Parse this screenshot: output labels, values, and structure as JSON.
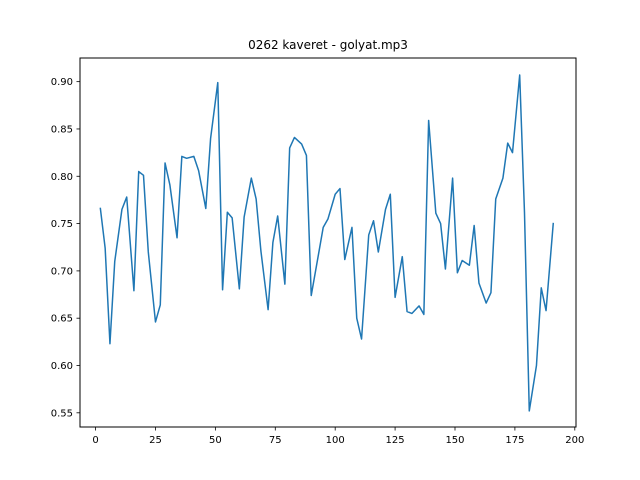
{
  "chart_data": {
    "type": "line",
    "title": "0262 kaveret - golyat.mp3",
    "xlabel": "",
    "ylabel": "",
    "xlim": [
      -6.5,
      200.5
    ],
    "ylim": [
      0.535,
      0.925
    ],
    "grid": false,
    "x_ticks": [
      0,
      25,
      50,
      75,
      100,
      125,
      150,
      175,
      200
    ],
    "x_tick_labels": [
      "0",
      "25",
      "50",
      "75",
      "100",
      "125",
      "150",
      "175",
      "200"
    ],
    "y_ticks": [
      0.55,
      0.6,
      0.65,
      0.7,
      0.75,
      0.8,
      0.85,
      0.9
    ],
    "y_tick_labels": [
      "0.55",
      "0.60",
      "0.65",
      "0.70",
      "0.75",
      "0.80",
      "0.85",
      "0.90"
    ],
    "series": [
      {
        "color": "#1f77b4",
        "x": [
          2,
          4,
          6,
          8,
          11,
          13,
          16,
          18,
          20,
          22,
          25,
          27,
          29,
          31,
          34,
          36,
          38,
          41,
          43,
          46,
          48,
          51,
          53,
          55,
          57,
          60,
          62,
          65,
          67,
          69,
          72,
          74,
          76,
          79,
          81,
          83,
          86,
          88,
          90,
          93,
          95,
          97,
          100,
          102,
          104,
          107,
          109,
          111,
          114,
          116,
          118,
          121,
          123,
          125,
          128,
          130,
          132,
          135,
          137,
          139,
          142,
          144,
          146,
          149,
          151,
          153,
          156,
          158,
          160,
          163,
          165,
          167,
          170,
          172,
          174,
          177,
          179,
          181,
          184,
          186,
          188,
          191
        ],
        "y": [
          0.766,
          0.724,
          0.623,
          0.71,
          0.765,
          0.778,
          0.679,
          0.805,
          0.801,
          0.72,
          0.646,
          0.664,
          0.814,
          0.791,
          0.735,
          0.821,
          0.819,
          0.821,
          0.806,
          0.766,
          0.84,
          0.899,
          0.68,
          0.762,
          0.756,
          0.681,
          0.757,
          0.798,
          0.776,
          0.721,
          0.659,
          0.73,
          0.758,
          0.686,
          0.83,
          0.841,
          0.834,
          0.822,
          0.674,
          0.717,
          0.746,
          0.755,
          0.781,
          0.787,
          0.712,
          0.746,
          0.65,
          0.628,
          0.738,
          0.753,
          0.72,
          0.765,
          0.781,
          0.672,
          0.715,
          0.657,
          0.655,
          0.663,
          0.654,
          0.859,
          0.761,
          0.75,
          0.702,
          0.798,
          0.698,
          0.711,
          0.706,
          0.748,
          0.687,
          0.666,
          0.677,
          0.776,
          0.798,
          0.835,
          0.825,
          0.907,
          0.762,
          0.552,
          0.6,
          0.682,
          0.658,
          0.75
        ]
      }
    ]
  }
}
